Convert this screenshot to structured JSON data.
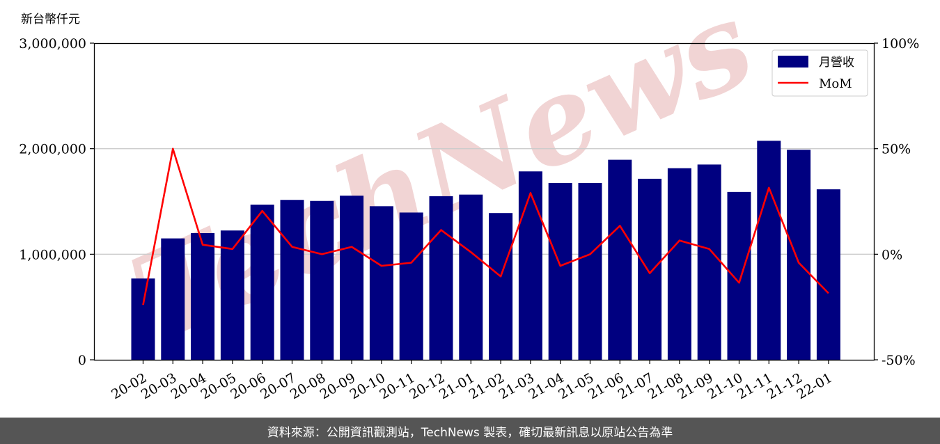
{
  "chart_data": {
    "type": "bar",
    "y_unit_label": "新台幣仟元",
    "categories": [
      "20-02",
      "20-03",
      "20-04",
      "20-05",
      "20-06",
      "20-07",
      "20-08",
      "20-09",
      "20-10",
      "20-11",
      "20-12",
      "21-01",
      "21-02",
      "21-03",
      "21-04",
      "21-05",
      "21-06",
      "21-07",
      "21-08",
      "21-09",
      "21-10",
      "21-11",
      "21-12",
      "22-01"
    ],
    "series": [
      {
        "name": "月營收",
        "kind": "bar",
        "axis": "left",
        "color": "#000080",
        "values": [
          770000,
          1150000,
          1200000,
          1225000,
          1470000,
          1515000,
          1505000,
          1555000,
          1455000,
          1395000,
          1550000,
          1565000,
          1390000,
          1785000,
          1675000,
          1675000,
          1895000,
          1715000,
          1815000,
          1850000,
          1590000,
          2075000,
          1990000,
          1615000
        ]
      },
      {
        "name": "MoM",
        "kind": "line",
        "axis": "right",
        "color": "#ff0000",
        "values": [
          -24,
          50,
          4.5,
          2.5,
          20.5,
          3.5,
          0,
          3.5,
          -5.5,
          -4,
          11.5,
          1,
          -10.5,
          29,
          -5.5,
          0,
          13.5,
          -9,
          6.5,
          2.5,
          -13.5,
          31.5,
          -4,
          -18.5
        ]
      }
    ],
    "left_axis": {
      "ylim": [
        0,
        3000000
      ],
      "ticks": [
        "0",
        "1,000,000",
        "2,000,000",
        "3,000,000"
      ],
      "tick_values": [
        0,
        1000000,
        2000000,
        3000000
      ]
    },
    "right_axis": {
      "ylim": [
        -50,
        100
      ],
      "ticks": [
        "-50%",
        "0%",
        "50%",
        "100%"
      ],
      "tick_values": [
        -50,
        0,
        50,
        100
      ]
    },
    "grid": "horizontal",
    "legend_position": "top-right",
    "watermark": "TechNews"
  },
  "footer": {
    "source_text": "資料來源：公開資訊觀測站，TechNews 製表，確切最新訊息以原站公告為準"
  }
}
